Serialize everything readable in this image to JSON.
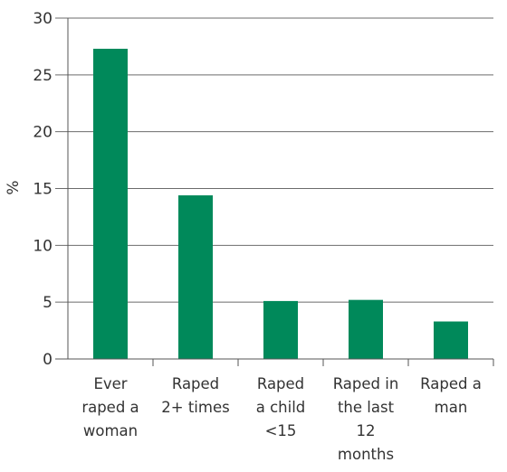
{
  "chart_data": {
    "type": "bar",
    "title": "",
    "xlabel": "",
    "ylabel": "%",
    "ylim": [
      0,
      30
    ],
    "yticks": [
      0,
      5,
      10,
      15,
      20,
      25,
      30
    ],
    "grid": true,
    "bar_color": "#00895a",
    "categories": [
      [
        "Ever",
        "raped a",
        "woman"
      ],
      [
        "Raped",
        "2+ times"
      ],
      [
        "Raped",
        "a child",
        "<15"
      ],
      [
        "Raped in",
        "the last",
        "12",
        "months"
      ],
      [
        "Raped a",
        "man"
      ]
    ],
    "values": [
      27.3,
      14.4,
      5.1,
      5.2,
      3.3
    ]
  }
}
